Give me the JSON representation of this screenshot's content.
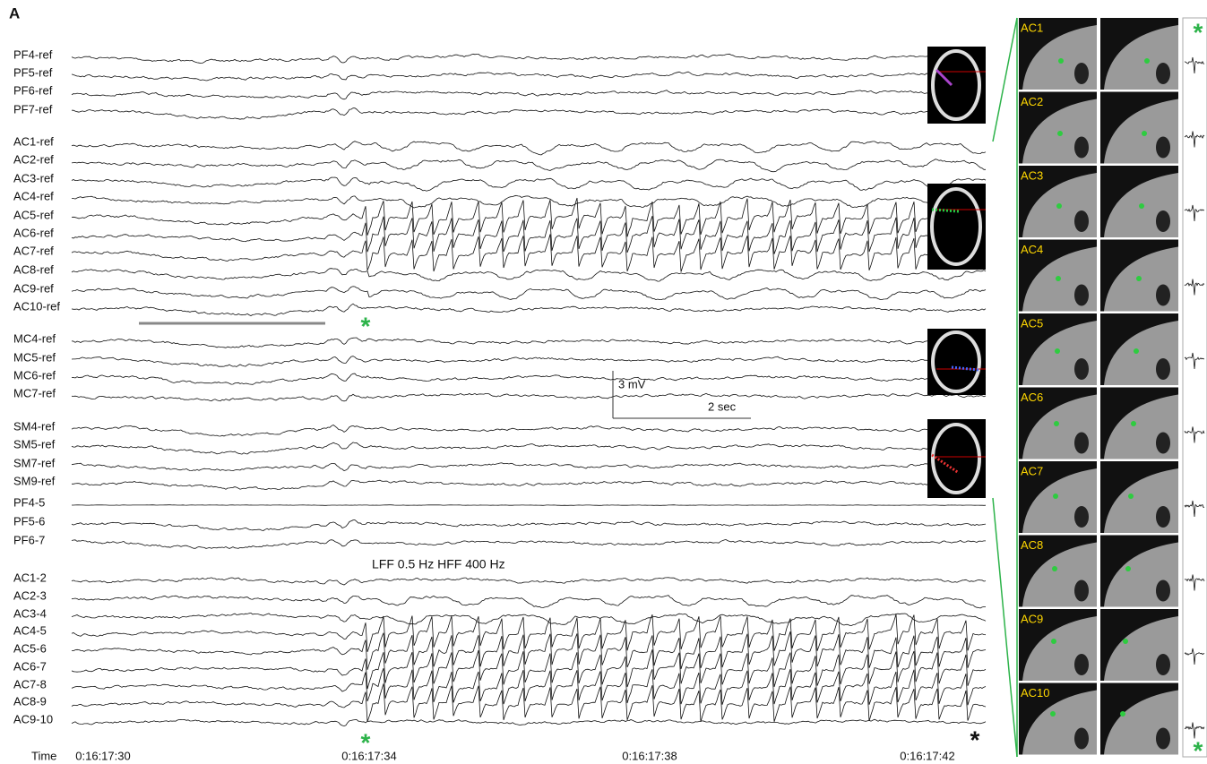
{
  "panel_label": "A",
  "channels": [
    "PF4-ref",
    "PF5-ref",
    "PF6-ref",
    "PF7-ref",
    "AC1-ref",
    "AC2-ref",
    "AC3-ref",
    "AC4-ref",
    "AC5-ref",
    "AC6-ref",
    "AC7-ref",
    "AC8-ref",
    "AC9-ref",
    "AC10-ref",
    "MC4-ref",
    "MC5-ref",
    "MC6-ref",
    "MC7-ref",
    "SM4-ref",
    "SM5-ref",
    "SM7-ref",
    "SM9-ref",
    "PF4-5",
    "PF5-6",
    "PF6-7",
    "AC1-2",
    "AC2-3",
    "AC3-4",
    "AC4-5",
    "AC5-6",
    "AC6-7",
    "AC7-8",
    "AC8-9",
    "AC9-10"
  ],
  "time": {
    "label": "Time",
    "ticks": [
      "0:16:17:30",
      "0:16:17:34",
      "0:16:17:38",
      "0:16:17:42"
    ]
  },
  "filter_note": "LFF 0.5 Hz  HFF 400 Hz",
  "scale_bar": {
    "amplitude": "3 mV",
    "duration": "2 sec"
  },
  "markers": {
    "onset": "*",
    "end": "*"
  },
  "mri_labels": [
    "AC1",
    "AC2",
    "AC3",
    "AC4",
    "AC5",
    "AC6",
    "AC7",
    "AC8",
    "AC9",
    "AC10"
  ]
}
